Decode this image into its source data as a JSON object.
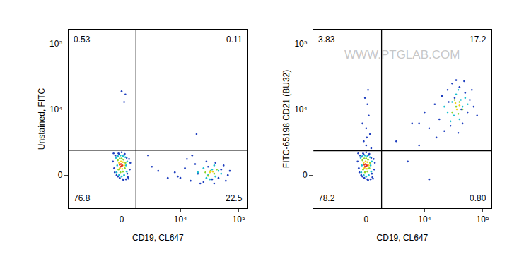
{
  "chart_data": [
    {
      "type": "scatter",
      "x_label": "CD19, CL647",
      "y_label": "Unstained, FITC",
      "xlim": [
        -8000,
        140000
      ],
      "ylim": [
        -2900,
        165000
      ],
      "xticks": [
        0,
        {
          "value": 10000,
          "label": "10⁴"
        },
        {
          "value": 100000,
          "label": "10⁵"
        }
      ],
      "yticks": [
        0,
        {
          "value": 10000,
          "label": "10⁴"
        },
        {
          "value": 100000,
          "label": "10⁵"
        }
      ],
      "quadrant_x": 1200,
      "quadrant_y": 2000,
      "quadrants": {
        "upper_left": 0.53,
        "upper_right": 0.11,
        "lower_left": 76.8,
        "lower_right": 22.5
      },
      "series": [
        {
          "color": "#1f3fbf",
          "x": [
            -650,
            -500,
            -350,
            -200,
            0,
            200,
            400,
            600,
            700,
            -600,
            -400,
            -150,
            150,
            350,
            550,
            -550,
            -300,
            100,
            450,
            650,
            -700,
            -250,
            250,
            500,
            8000,
            10000,
            12000,
            15000,
            18000,
            20000,
            25000,
            30000,
            35000,
            40000,
            45000,
            50000,
            60000,
            70000,
            13000,
            22000,
            28000,
            38000,
            55000,
            9000,
            16000,
            65000,
            2500,
            4000,
            6000,
            3000,
            19000,
            0,
            300,
            200
          ],
          "y": [
            1700,
            1500,
            1400,
            1600,
            1800,
            1550,
            1300,
            1200,
            900,
            500,
            0,
            -200,
            -350,
            -300,
            -250,
            200,
            -100,
            -300,
            100,
            400,
            1000,
            1700,
            1650,
            -150,
            200,
            -200,
            500,
            -400,
            800,
            100,
            -500,
            600,
            -300,
            900,
            -200,
            400,
            -400,
            300,
            1200,
            -600,
            1000,
            -600,
            700,
            -100,
            1500,
            0,
            1500,
            300,
            -200,
            600,
            4000,
            19000,
            17000,
            13000
          ]
        },
        {
          "color": "#18c0d0",
          "x": [
            -450,
            -300,
            -100,
            100,
            300,
            450,
            -400,
            -200,
            0,
            200,
            400,
            -350,
            350,
            20000,
            25000,
            30000,
            35000,
            40000,
            45000,
            28000,
            38000,
            50000,
            32000
          ],
          "y": [
            1300,
            1450,
            1500,
            1450,
            1350,
            1000,
            200,
            0,
            -100,
            0,
            250,
            700,
            700,
            200,
            500,
            0,
            400,
            -100,
            300,
            -200,
            700,
            100,
            -300
          ]
        },
        {
          "color": "#8ad52a",
          "x": [
            -300,
            -150,
            0,
            150,
            300,
            -250,
            250,
            -100,
            100,
            27000,
            33000,
            38000,
            42000,
            30000
          ],
          "y": [
            1100,
            1250,
            1250,
            1150,
            900,
            400,
            500,
            200,
            250,
            200,
            300,
            100,
            400,
            -50
          ]
        },
        {
          "color": "#f7d21b",
          "x": [
            -200,
            -50,
            100,
            200,
            -150,
            50,
            32000,
            36000
          ],
          "y": [
            900,
            1000,
            950,
            700,
            500,
            450,
            200,
            250
          ]
        },
        {
          "color": "#e5331f",
          "x": [
            -150,
            -50,
            50,
            -100,
            0
          ],
          "y": [
            750,
            800,
            700,
            600,
            650
          ]
        }
      ]
    },
    {
      "type": "scatter",
      "x_label": "CD19, CL647",
      "y_label": "FITC-65198 CD21 (BU32)",
      "watermark": "WWW.PTGLAB.COM",
      "xlim": [
        -8000,
        140000
      ],
      "ylim": [
        -2900,
        165000
      ],
      "xticks": [
        0,
        {
          "value": 10000,
          "label": "10⁴"
        },
        {
          "value": 100000,
          "label": "10⁵"
        }
      ],
      "yticks": [
        0,
        {
          "value": 10000,
          "label": "10⁴"
        },
        {
          "value": 100000,
          "label": "10⁵"
        }
      ],
      "quadrant_x": 1300,
      "quadrant_y": 1950,
      "quadrants": {
        "upper_left": 3.83,
        "upper_right": 17.2,
        "lower_left": 78.2,
        "lower_right": {
          "value": 0.8,
          "label": "0.80"
        }
      },
      "series": [
        {
          "color": "#1f3fbf",
          "x": [
            -650,
            -500,
            -350,
            -200,
            0,
            200,
            400,
            600,
            700,
            -600,
            -400,
            -150,
            150,
            350,
            550,
            -550,
            -300,
            100,
            450,
            650,
            -700,
            -250,
            250,
            500,
            8000,
            10000,
            12000,
            15000,
            18000,
            20000,
            22000,
            25000,
            28000,
            30000,
            35000,
            40000,
            45000,
            50000,
            55000,
            60000,
            70000,
            80000,
            16000,
            26000,
            38000,
            48000,
            65000,
            33000,
            43000,
            3000,
            5000,
            8000,
            12000,
            6000,
            -200,
            0,
            200,
            100,
            -100,
            300,
            0,
            -300,
            150,
            50,
            400
          ],
          "y": [
            1700,
            1500,
            1400,
            1600,
            1800,
            1550,
            1300,
            1200,
            900,
            500,
            0,
            -200,
            -350,
            -300,
            -250,
            200,
            -100,
            -300,
            100,
            400,
            1000,
            1700,
            1650,
            -150,
            6000,
            9000,
            5000,
            12000,
            7000,
            16000,
            4500,
            20000,
            5500,
            25000,
            28000,
            22000,
            6000,
            18000,
            9000,
            14000,
            11000,
            8000,
            3500,
            13000,
            4200,
            27000,
            20000,
            15000,
            10000,
            3000,
            1000,
            2500,
            -300,
            6000,
            3000,
            5000,
            8000,
            12000,
            15000,
            4000,
            2500,
            6000,
            20000,
            3500,
            2200
          ]
        },
        {
          "color": "#18c0d0",
          "x": [
            -450,
            -300,
            -100,
            100,
            300,
            450,
            -400,
            -200,
            0,
            200,
            400,
            -350,
            350,
            25000,
            30000,
            35000,
            40000,
            45000,
            50000,
            28000,
            38000,
            55000,
            32000,
            42000,
            22000
          ],
          "y": [
            1300,
            1450,
            1500,
            1450,
            1350,
            1000,
            200,
            0,
            -100,
            0,
            250,
            700,
            700,
            9000,
            13000,
            17000,
            7000,
            11000,
            15000,
            6500,
            20000,
            12000,
            8000,
            14000,
            11000
          ]
        },
        {
          "color": "#8ad52a",
          "x": [
            -300,
            -150,
            0,
            150,
            300,
            -250,
            250,
            -100,
            100,
            30000,
            35000,
            40000,
            45000,
            33000,
            38000
          ],
          "y": [
            1100,
            1250,
            1250,
            1150,
            900,
            400,
            500,
            200,
            250,
            9000,
            11000,
            13000,
            10000,
            14000,
            8500
          ]
        },
        {
          "color": "#f7d21b",
          "x": [
            -200,
            -50,
            100,
            200,
            -150,
            50,
            36000,
            40000,
            34000
          ],
          "y": [
            900,
            1000,
            950,
            700,
            500,
            450,
            10000,
            11500,
            12500
          ]
        },
        {
          "color": "#e5331f",
          "x": [
            -150,
            -50,
            50,
            -100,
            0
          ],
          "y": [
            750,
            800,
            700,
            600,
            650
          ]
        }
      ]
    }
  ]
}
